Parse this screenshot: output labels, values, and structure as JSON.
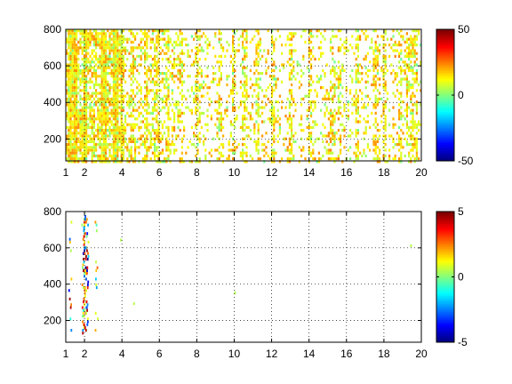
{
  "chart_data": [
    {
      "type": "heatmap",
      "title": "",
      "xlabel": "",
      "ylabel": "",
      "xlim": [
        1,
        20
      ],
      "ylim": [
        80,
        800
      ],
      "xticks": [
        1,
        2,
        4,
        6,
        8,
        10,
        12,
        14,
        16,
        18,
        20
      ],
      "yticks": [
        200,
        400,
        600,
        800
      ],
      "grid": true,
      "colormap": "jet",
      "clim": [
        -50,
        50
      ],
      "colorbar_ticks": [
        -50,
        0,
        50
      ],
      "sparse_fill": "dense near x=1-4, sparse toward x=20, values mostly within 0-20 (cyan to yellow-green)",
      "vertical_bands_x": [
        1.2,
        1.5,
        2.0,
        3.0,
        3.6,
        4.0,
        4.5,
        5.2,
        5.8,
        6.4,
        7.1,
        8.0,
        9.2,
        9.9,
        10.5,
        11.2,
        12.0,
        13.0,
        14.0,
        15.2,
        15.6,
        16.5,
        17.5,
        18.0,
        18.8,
        19.3,
        19.6
      ]
    },
    {
      "type": "heatmap",
      "title": "",
      "xlabel": "",
      "ylabel": "",
      "xlim": [
        1,
        20
      ],
      "ylim": [
        80,
        800
      ],
      "xticks": [
        1,
        2,
        4,
        6,
        8,
        10,
        12,
        14,
        16,
        18,
        20
      ],
      "yticks": [
        200,
        400,
        600,
        800
      ],
      "grid": true,
      "colormap": "jet",
      "clim": [
        -5,
        5
      ],
      "colorbar_ticks": [
        -5,
        0,
        5
      ],
      "sparse_fill": "mostly empty; values concentrated near x=1.2-2.6",
      "vertical_bands_x": [
        1.2,
        1.9,
        2.0,
        2.1,
        2.6
      ]
    }
  ],
  "colors": {
    "grid": "#000000",
    "axes": "#000000",
    "background": "#ffffff"
  }
}
